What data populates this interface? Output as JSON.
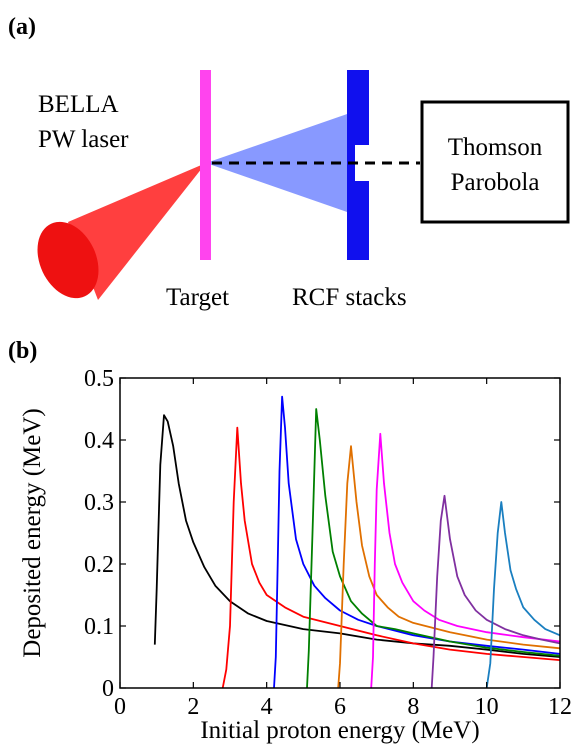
{
  "panel_a": {
    "label": "(a)",
    "laser_line1": "BELLA",
    "laser_line2": "PW laser",
    "target_label": "Target",
    "rcf_label": "RCF stacks",
    "tp_line1": "Thomson",
    "tp_line2": "Parobola",
    "colors": {
      "laser_cone": "#ff2a2a",
      "target": "#ff44ee",
      "proton_cone": "#8899ff",
      "rcf": "#1010ee"
    }
  },
  "panel_b": {
    "label": "(b)"
  },
  "chart_data": {
    "type": "line",
    "xlabel": "Initial proton energy (MeV)",
    "ylabel": "Deposited energy (MeV)",
    "xlim": [
      0,
      12
    ],
    "ylim": [
      0,
      0.5
    ],
    "x_ticks": [
      "0",
      "2",
      "4",
      "6",
      "8",
      "10",
      "12"
    ],
    "y_ticks": [
      "0",
      "0.1",
      "0.2",
      "0.3",
      "0.4",
      "0.5"
    ],
    "grid": false,
    "series": [
      {
        "color": "#000000",
        "x": [
          0.95,
          1.0,
          1.1,
          1.2,
          1.3,
          1.45,
          1.6,
          1.8,
          2.0,
          2.3,
          2.6,
          3.0,
          3.5,
          4.0,
          5.0,
          6.0,
          7.0,
          8.0,
          9.0,
          10.0,
          11.0,
          12.0
        ],
        "y": [
          0.07,
          0.16,
          0.36,
          0.44,
          0.43,
          0.39,
          0.33,
          0.27,
          0.235,
          0.195,
          0.165,
          0.14,
          0.12,
          0.108,
          0.095,
          0.088,
          0.078,
          0.072,
          0.068,
          0.062,
          0.055,
          0.05
        ]
      },
      {
        "color": "#ff0000",
        "x": [
          2.8,
          2.9,
          3.0,
          3.1,
          3.2,
          3.3,
          3.4,
          3.6,
          3.8,
          4.0,
          4.5,
          5.0,
          6.0,
          7.0,
          8.0,
          9.0,
          10.0,
          11.0,
          12.0
        ],
        "y": [
          0.0,
          0.03,
          0.1,
          0.3,
          0.42,
          0.33,
          0.27,
          0.2,
          0.17,
          0.15,
          0.13,
          0.115,
          0.1,
          0.085,
          0.072,
          0.062,
          0.055,
          0.05,
          0.045
        ]
      },
      {
        "color": "#0000ff",
        "x": [
          4.2,
          4.25,
          4.3,
          4.35,
          4.42,
          4.5,
          4.6,
          4.8,
          5.0,
          5.3,
          5.6,
          6.0,
          6.5,
          7.0,
          8.0,
          9.0,
          10.0,
          11.0,
          12.0
        ],
        "y": [
          0.0,
          0.05,
          0.2,
          0.35,
          0.47,
          0.42,
          0.33,
          0.24,
          0.2,
          0.165,
          0.145,
          0.125,
          0.11,
          0.1,
          0.085,
          0.075,
          0.068,
          0.062,
          0.055
        ]
      },
      {
        "color": "#008000",
        "x": [
          5.1,
          5.15,
          5.25,
          5.35,
          5.45,
          5.6,
          5.8,
          6.0,
          6.3,
          6.6,
          7.0,
          7.5,
          8.0,
          9.0,
          10.0,
          11.0,
          12.0
        ],
        "y": [
          0.0,
          0.06,
          0.25,
          0.45,
          0.4,
          0.31,
          0.22,
          0.18,
          0.14,
          0.12,
          0.1,
          0.095,
          0.088,
          0.075,
          0.065,
          0.058,
          0.052
        ]
      },
      {
        "color": "#e07000",
        "x": [
          5.95,
          6.0,
          6.1,
          6.2,
          6.3,
          6.45,
          6.6,
          6.8,
          7.0,
          7.3,
          7.6,
          8.0,
          9.0,
          10.0,
          11.0,
          12.0
        ],
        "y": [
          0.0,
          0.04,
          0.2,
          0.33,
          0.39,
          0.3,
          0.23,
          0.18,
          0.15,
          0.13,
          0.115,
          0.105,
          0.09,
          0.078,
          0.07,
          0.064
        ]
      },
      {
        "color": "#ff00ff",
        "x": [
          6.85,
          6.9,
          6.95,
          7.0,
          7.1,
          7.2,
          7.35,
          7.5,
          7.7,
          8.0,
          8.3,
          8.7,
          9.2,
          10.0,
          11.0,
          12.0
        ],
        "y": [
          0.0,
          0.05,
          0.2,
          0.32,
          0.41,
          0.33,
          0.25,
          0.2,
          0.17,
          0.14,
          0.125,
          0.11,
          0.1,
          0.09,
          0.082,
          0.075
        ]
      },
      {
        "color": "#8030a0",
        "x": [
          8.5,
          8.55,
          8.65,
          8.75,
          8.85,
          9.0,
          9.2,
          9.4,
          9.7,
          10.0,
          10.5,
          11.0,
          11.5,
          12.0
        ],
        "y": [
          0.0,
          0.05,
          0.18,
          0.27,
          0.31,
          0.24,
          0.18,
          0.15,
          0.125,
          0.11,
          0.095,
          0.085,
          0.078,
          0.072
        ]
      },
      {
        "color": "#1a7fc0",
        "x": [
          10.0,
          10.1,
          10.2,
          10.3,
          10.4,
          10.5,
          10.65,
          10.8,
          11.0,
          11.3,
          11.6,
          12.0
        ],
        "y": [
          0.0,
          0.04,
          0.16,
          0.25,
          0.3,
          0.25,
          0.19,
          0.16,
          0.13,
          0.11,
          0.095,
          0.085
        ]
      }
    ]
  }
}
